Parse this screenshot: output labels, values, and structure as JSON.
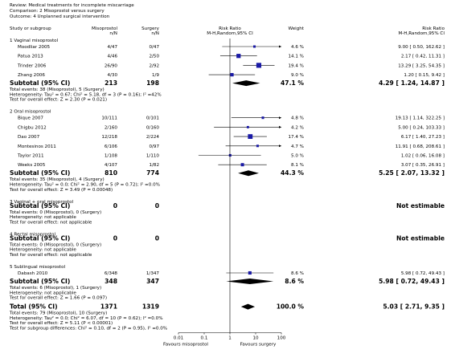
{
  "header": {
    "review": "Review:  Medical treatments for incomplete miscarriage",
    "comparison": "Comparison:  2 Misoprostol versus surgery",
    "outcome": "Outcome:  4 Unplanned surgical intervention"
  },
  "columns": {
    "study": "Study or subgroup",
    "exp": "Misoprostol",
    "exp_sub": "n/N",
    "ctrl": "Surgery",
    "ctrl_sub": "n/N",
    "plot": "Risk Ratio",
    "plot_sub": "M-H,Random,95% CI",
    "weight": "Weight",
    "rr": "Risk Ratio",
    "rr_sub": "M-H,Random,95% CI"
  },
  "axis": {
    "scale": "log",
    "lim": [
      0.01,
      100
    ],
    "ticks": [
      0.01,
      0.1,
      1,
      10,
      100
    ],
    "left_label": "Favours misoprostol",
    "right_label": "Favours surgery"
  },
  "colors": {
    "square": "#1a1aa6",
    "line": "#000000"
  },
  "groups": [
    {
      "title": "1 Vaginal misoprostol",
      "studies": [
        {
          "name": "Moodliar 2005",
          "exp": "4/47",
          "ctrl": "0/47",
          "weight": {
            "value": 4.6,
            "label": "4.6 %"
          },
          "rr": {
            "value": 9.0,
            "lo": 0.5,
            "hi": 162.62,
            "label": "9.00 [ 0.50, 162.62 ]"
          }
        },
        {
          "name": "Patua 2013",
          "exp": "4/46",
          "ctrl": "2/50",
          "weight": {
            "value": 14.1,
            "label": "14.1 %"
          },
          "rr": {
            "value": 2.17,
            "lo": 0.42,
            "hi": 11.31,
            "label": "2.17 [ 0.42, 11.31 ]"
          }
        },
        {
          "name": "Trinder 2006",
          "exp": "26/90",
          "ctrl": "2/92",
          "weight": {
            "value": 19.4,
            "label": "19.4 %"
          },
          "rr": {
            "value": 13.29,
            "lo": 3.25,
            "hi": 54.35,
            "label": "13.29 [ 3.25, 54.35 ]"
          }
        },
        {
          "name": "Zhang 2006",
          "exp": "4/30",
          "ctrl": "1/9",
          "weight": {
            "value": 9.0,
            "label": "9.0 %"
          },
          "rr": {
            "value": 1.2,
            "lo": 0.15,
            "hi": 9.42,
            "label": "1.20 [ 0.15, 9.42 ]"
          }
        }
      ],
      "subtotal": {
        "label": "Subtotal (95% CI)",
        "exp": "213",
        "ctrl": "198",
        "weight": "47.1 %",
        "rr": {
          "value": 4.29,
          "lo": 1.24,
          "hi": 14.87,
          "label": "4.29 [ 1.24, 14.87 ]"
        }
      },
      "notes": [
        "Total events: 38 (Misoprostol), 5 (Surgery)",
        "Heterogeneity: Tau² = 0.67; Chi² = 5.18, df = 3 (P = 0.16); I² =42%",
        "Test for overall effect: Z = 2.30 (P = 0.021)"
      ]
    },
    {
      "title": "2 Oral misoprostol",
      "studies": [
        {
          "name": "Bique 2007",
          "exp": "10/111",
          "ctrl": "0/101",
          "weight": {
            "value": 4.8,
            "label": "4.8 %"
          },
          "rr": {
            "value": 19.13,
            "lo": 1.14,
            "hi": 322.25,
            "label": "19.13 [ 1.14, 322.25 ]"
          }
        },
        {
          "name": "Chigbu 2012",
          "exp": "2/160",
          "ctrl": "0/160",
          "weight": {
            "value": 4.2,
            "label": "4.2 %"
          },
          "rr": {
            "value": 5.0,
            "lo": 0.24,
            "hi": 103.33,
            "label": "5.00 [ 0.24, 103.33 ]"
          }
        },
        {
          "name": "Dao 2007",
          "exp": "12/218",
          "ctrl": "2/224",
          "weight": {
            "value": 17.4,
            "label": "17.4 %"
          },
          "rr": {
            "value": 6.17,
            "lo": 1.4,
            "hi": 27.23,
            "label": "6.17 [ 1.40, 27.23 ]"
          }
        },
        {
          "name": "Montesinos 2011",
          "exp": "6/106",
          "ctrl": "0/97",
          "weight": {
            "value": 4.7,
            "label": "4.7 %"
          },
          "rr": {
            "value": 11.91,
            "lo": 0.68,
            "hi": 208.61,
            "label": "11.91 [ 0.68, 208.61 ]"
          }
        },
        {
          "name": "Taylor 2011",
          "exp": "1/108",
          "ctrl": "1/110",
          "weight": {
            "value": 5.0,
            "label": "5.0 %"
          },
          "rr": {
            "value": 1.02,
            "lo": 0.06,
            "hi": 16.08,
            "label": "1.02 [ 0.06, 16.08 ]"
          }
        },
        {
          "name": "Weeks 2005",
          "exp": "4/107",
          "ctrl": "1/82",
          "weight": {
            "value": 8.1,
            "label": "8.1 %"
          },
          "rr": {
            "value": 3.07,
            "lo": 0.35,
            "hi": 26.91,
            "label": "3.07 [ 0.35, 26.91 ]"
          }
        }
      ],
      "subtotal": {
        "label": "Subtotal (95% CI)",
        "exp": "810",
        "ctrl": "774",
        "weight": "44.3 %",
        "rr": {
          "value": 5.25,
          "lo": 2.07,
          "hi": 13.32,
          "label": "5.25 [ 2.07, 13.32 ]"
        }
      },
      "notes": [
        "Total events: 35 (Misoprostol), 4 (Surgery)",
        "Heterogeneity: Tau² = 0.0; Chi² = 2.90, df = 5 (P = 0.72); I² =0.0%",
        "Test for overall effect: Z = 3.49 (P = 0.00048)"
      ]
    },
    {
      "title": "3 Vaginal + oral misoprostol",
      "studies": [],
      "subtotal": {
        "label": "Subtotal (95% CI)",
        "exp": "0",
        "ctrl": "0",
        "rr": {
          "label": "Not estimable"
        }
      },
      "notes": [
        "Total events: 0 (Misoprostol), 0 (Surgery)",
        "Heterogeneity: not applicable",
        "Test for overall effect: not applicable"
      ]
    },
    {
      "title": "4 Rectal misoprostol",
      "studies": [],
      "subtotal": {
        "label": "Subtotal (95% CI)",
        "exp": "0",
        "ctrl": "0",
        "rr": {
          "label": "Not estimable"
        }
      },
      "notes": [
        "Total events: 0 (Misoprostol), 0 (Surgery)",
        "Heterogeneity: not applicable",
        "Test for overall effect: not applicable"
      ]
    },
    {
      "title": "5 Sublingual misoprostol",
      "studies": [
        {
          "name": "Dabash 2010",
          "exp": "6/348",
          "ctrl": "1/347",
          "weight": {
            "value": 8.6,
            "label": "8.6 %"
          },
          "rr": {
            "value": 5.98,
            "lo": 0.72,
            "hi": 49.43,
            "label": "5.98 [ 0.72, 49.43 ]"
          }
        }
      ],
      "subtotal": {
        "label": "Subtotal (95% CI)",
        "exp": "348",
        "ctrl": "347",
        "weight": "8.6 %",
        "rr": {
          "value": 5.98,
          "lo": 0.72,
          "hi": 49.43,
          "label": "5.98 [ 0.72, 49.43 ]"
        }
      },
      "notes": [
        "Total events: 6 (Misoprostol), 1 (Surgery)",
        "Heterogeneity: not applicable",
        "Test for overall effect: Z = 1.66 (P = 0.097)"
      ]
    }
  ],
  "total": {
    "label": "Total (95% CI)",
    "exp": "1371",
    "ctrl": "1319",
    "weight": "100.0 %",
    "rr": {
      "value": 5.03,
      "lo": 2.71,
      "hi": 9.35,
      "label": "5.03 [ 2.71, 9.35 ]"
    },
    "notes": [
      "Total events: 79 (Misoprostol), 10 (Surgery)",
      "Heterogeneity: Tau² = 0.0; Chi² = 6.07, df = 10 (P = 0.62); I² =0.0%",
      "Test for overall effect: Z = 5.11 (P < 0.00001)",
      "Test for subgroup differences: Chi² = 0.10, df = 2 (P = 0.95), I² =0.0%"
    ]
  }
}
